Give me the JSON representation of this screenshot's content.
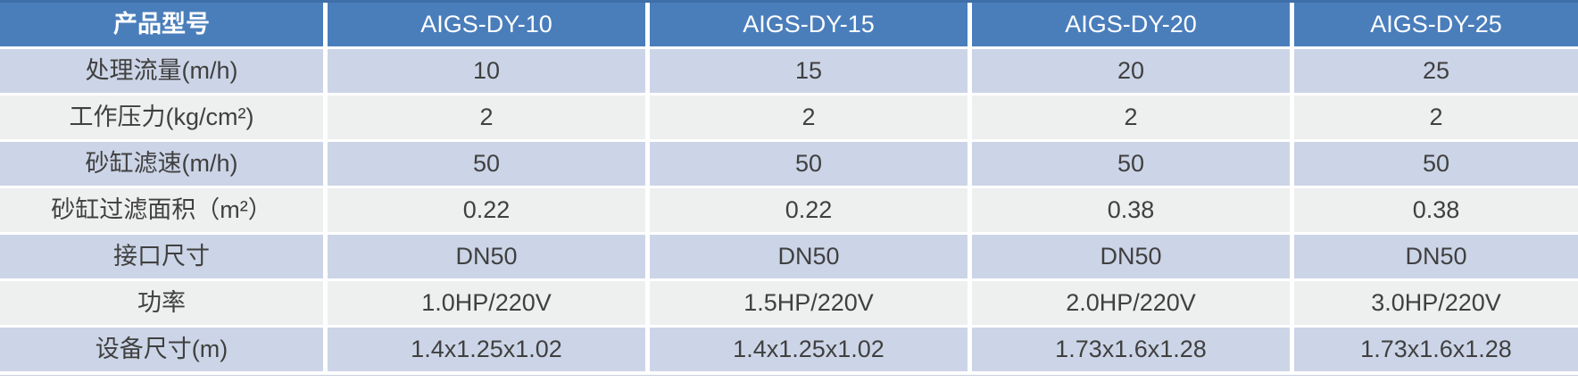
{
  "table": {
    "header": {
      "label": "产品型号",
      "models": [
        "AIGS-DY-10",
        "AIGS-DY-15",
        "AIGS-DY-20",
        "AIGS-DY-25"
      ]
    },
    "rows": [
      {
        "label": "处理流量(m/h)",
        "values": [
          "10",
          "15",
          "20",
          "25"
        ]
      },
      {
        "label": "工作压力(kg/cm²)",
        "values": [
          "2",
          "2",
          "2",
          "2"
        ]
      },
      {
        "label": "砂缸滤速(m/h)",
        "values": [
          "50",
          "50",
          "50",
          "50"
        ]
      },
      {
        "label": "砂缸过滤面积（m²）",
        "values": [
          "0.22",
          "0.22",
          "0.38",
          "0.38"
        ]
      },
      {
        "label": "接口尺寸",
        "values": [
          "DN50",
          "DN50",
          "DN50",
          "DN50"
        ]
      },
      {
        "label": "功率",
        "values": [
          "1.0HP/220V",
          "1.5HP/220V",
          "2.0HP/220V",
          "3.0HP/220V"
        ]
      },
      {
        "label": "设备尺寸(m)",
        "values": [
          "1.4x1.25x1.02",
          "1.4x1.25x1.02",
          "1.73x1.6x1.28",
          "1.73x1.6x1.28"
        ]
      }
    ],
    "colors": {
      "header_bg": "#4a7ebb",
      "header_text": "#ffffff",
      "row_blue_bg": "#ccd5e7",
      "row_gray_bg": "#eeefef",
      "body_text": "#404040",
      "top_border": "#3e6fa9"
    }
  }
}
